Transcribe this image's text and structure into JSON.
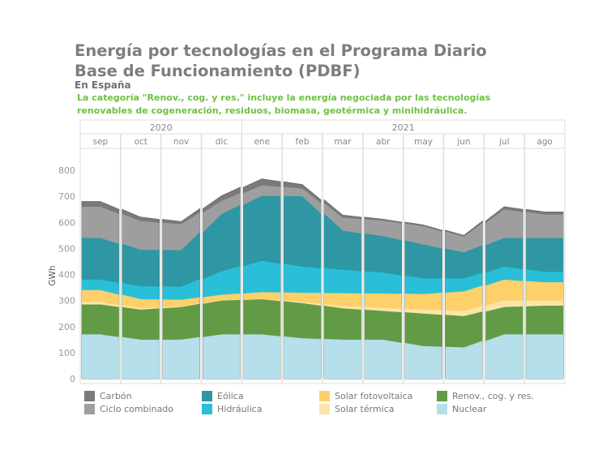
{
  "title": "Energía por tecnologías en el Programa Diario Base de Funcionamiento (PDBF)",
  "subtitle": "En España",
  "note": "La categoría \"Renov., cog. y res.\" incluye la energía negociada por las tecnologías renovables de cogeneración, residuos, biomasa, geotérmica y minihidráulica.",
  "chart_data": {
    "type": "area",
    "stacked": true,
    "ylabel": "GWh",
    "ylim": [
      0,
      850
    ],
    "yticks": [
      0,
      100,
      200,
      300,
      400,
      500,
      600,
      700,
      800
    ],
    "years": [
      {
        "label": "2020",
        "months": 4
      },
      {
        "label": "2021",
        "months": 8
      }
    ],
    "categories": [
      "sep",
      "oct",
      "nov",
      "dic",
      "ene",
      "feb",
      "mar",
      "abr",
      "may",
      "jun",
      "jul",
      "ago"
    ],
    "grid": false,
    "legend_position": "bottom",
    "series": [
      {
        "name": "Nuclear",
        "color": "#b5dfea",
        "values": [
          170,
          150,
          150,
          170,
          170,
          155,
          150,
          150,
          125,
          120,
          170,
          170
        ]
      },
      {
        "name": "Renov., cog. y res.",
        "color": "#629b45",
        "values": [
          115,
          115,
          125,
          130,
          135,
          135,
          120,
          110,
          125,
          120,
          105,
          110
        ]
      },
      {
        "name": "Solar térmica",
        "color": "#fde4a6",
        "values": [
          10,
          5,
          3,
          2,
          2,
          5,
          8,
          12,
          15,
          20,
          25,
          20
        ]
      },
      {
        "name": "Solar fotovoltaica",
        "color": "#fdd06a",
        "values": [
          45,
          35,
          25,
          20,
          25,
          35,
          50,
          55,
          60,
          75,
          80,
          70
        ]
      },
      {
        "name": "Hidráulica",
        "color": "#29bfd8",
        "values": [
          40,
          50,
          50,
          90,
          120,
          100,
          90,
          80,
          60,
          50,
          50,
          40
        ]
      },
      {
        "name": "Eólica",
        "color": "#2e97a3",
        "values": [
          160,
          140,
          140,
          220,
          250,
          270,
          150,
          140,
          130,
          100,
          110,
          130
        ]
      },
      {
        "name": "Ciclo combinado",
        "color": "#9e9e9e",
        "values": [
          120,
          110,
          100,
          50,
          40,
          30,
          50,
          60,
          70,
          60,
          110,
          90
        ]
      },
      {
        "name": "Carbón",
        "color": "#7a7a7a",
        "values": [
          20,
          15,
          10,
          20,
          25,
          15,
          10,
          5,
          5,
          5,
          10,
          10
        ]
      }
    ]
  },
  "legend_order": [
    "Carbón",
    "Ciclo combinado",
    "Eólica",
    "Hidráulica",
    "Solar fotovoltaica",
    "Solar térmica",
    "Renov., cog. y res.",
    "Nuclear"
  ]
}
